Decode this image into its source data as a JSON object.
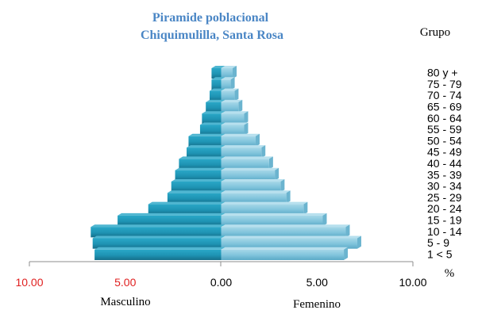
{
  "chart_data": {
    "type": "bar",
    "orientation": "horizontal",
    "title_lines": [
      "Piramide poblacional",
      "Chiquimulilla, Santa Rosa"
    ],
    "group_label": "Grupo",
    "unit_label": "%",
    "xlabel_left": "Masculino",
    "xlabel_right": "Femenino",
    "categories": [
      "80 y +",
      "75 - 79",
      "70 - 74",
      "65 - 69",
      "60 - 64",
      "55 - 59",
      "50 - 54",
      "45 - 49",
      "40 - 44",
      "35 - 39",
      "30 - 34",
      "25 - 29",
      "20 - 24",
      "15 - 19",
      "10 - 14",
      "5 - 9",
      "1 < 5"
    ],
    "series": [
      {
        "name": "Masculino",
        "values": [
          0.5,
          0.5,
          0.6,
          0.8,
          1.0,
          1.1,
          1.7,
          1.8,
          2.2,
          2.4,
          2.6,
          2.8,
          3.8,
          5.4,
          6.8,
          6.7,
          6.6
        ]
      },
      {
        "name": "Femenino",
        "values": [
          0.6,
          0.5,
          0.7,
          0.9,
          1.2,
          1.2,
          1.8,
          2.1,
          2.5,
          2.8,
          3.1,
          3.4,
          4.3,
          5.3,
          6.5,
          7.1,
          6.4
        ]
      }
    ],
    "ticks": [
      {
        "value": -10,
        "label": "10.00",
        "color": "#e02020"
      },
      {
        "value": -5,
        "label": "5.00",
        "color": "#e02020"
      },
      {
        "value": 0,
        "label": "0.00",
        "color": "#000000"
      },
      {
        "value": 5,
        "label": "5.00",
        "color": "#000000"
      },
      {
        "value": 10,
        "label": "10.00",
        "color": "#000000"
      }
    ],
    "xlim": [
      -10,
      10
    ],
    "colors": {
      "title": "#4a86c5",
      "male": "#1e93b3",
      "female": "#7fc3db",
      "axis": "#8c8c8c"
    },
    "grid": false
  }
}
